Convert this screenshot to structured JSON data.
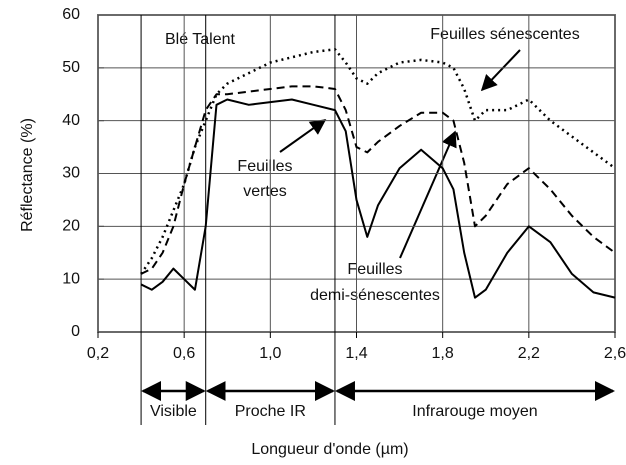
{
  "chart_data": {
    "type": "line",
    "x_label": "Longueur d'onde  (µm)",
    "y_label": "Réflectance (%)",
    "annotations": [
      "Blé Talent",
      "Feuilles sénescentes",
      [
        "Feuilles",
        "vertes"
      ],
      [
        "Feuilles",
        "demi-sénescentes"
      ]
    ],
    "x": [
      0.4,
      0.45,
      0.5,
      0.55,
      0.6,
      0.65,
      0.7,
      0.75,
      0.8,
      0.9,
      1.0,
      1.1,
      1.2,
      1.3,
      1.35,
      1.4,
      1.45,
      1.5,
      1.6,
      1.7,
      1.8,
      1.85,
      1.9,
      1.95,
      2.0,
      2.1,
      2.2,
      2.3,
      2.4,
      2.5,
      2.6
    ],
    "series": [
      {
        "color": "#000000",
        "dash": "solid",
        "values": [
          9,
          8,
          9.5,
          12,
          10,
          8,
          20,
          43,
          44,
          43,
          43.5,
          44,
          43,
          42,
          38,
          25,
          18,
          24,
          31,
          34.5,
          31,
          27,
          15,
          6.5,
          8,
          15,
          20,
          17,
          11,
          7.5,
          6.5
        ]
      },
      {
        "color": "#000000",
        "dash": "dashed",
        "values": [
          11,
          12,
          15,
          20,
          28,
          35,
          42,
          45,
          45,
          45.5,
          46,
          46.5,
          46.5,
          46,
          42,
          35,
          34,
          36,
          39,
          41.5,
          41.5,
          40,
          32,
          20,
          22,
          28,
          31,
          27,
          22,
          18,
          15
        ]
      },
      {
        "color": "#000000",
        "dash": "dotted",
        "values": [
          11,
          14,
          18,
          23,
          28,
          35,
          40,
          45,
          47,
          49,
          51,
          52,
          53,
          53.5,
          51,
          48,
          47,
          49,
          51,
          51.5,
          51,
          50,
          46,
          40,
          42,
          42,
          44,
          40,
          37,
          34,
          31
        ]
      }
    ],
    "regions": [
      {
        "label": "Visible",
        "start": 0.4,
        "end": 0.7
      },
      {
        "label": "Proche IR",
        "start": 0.7,
        "end": 1.3
      },
      {
        "label": "Infrarouge moyen",
        "start": 1.3,
        "end": 2.6
      }
    ],
    "xlim": [
      0.2,
      2.6
    ],
    "xticks": [
      {
        "value": 0.2,
        "label": "0,2"
      },
      {
        "value": 0.6,
        "label": "0,6"
      },
      {
        "value": 1.0,
        "label": "1,0"
      },
      {
        "value": 1.4,
        "label": "1,4"
      },
      {
        "value": 1.8,
        "label": "1,8"
      },
      {
        "value": 2.2,
        "label": "2,2"
      },
      {
        "value": 2.6,
        "label": "2,6"
      }
    ],
    "ylim": [
      0,
      60
    ],
    "yticks": [
      0,
      10,
      20,
      30,
      40,
      50,
      60
    ],
    "grid": true
  }
}
